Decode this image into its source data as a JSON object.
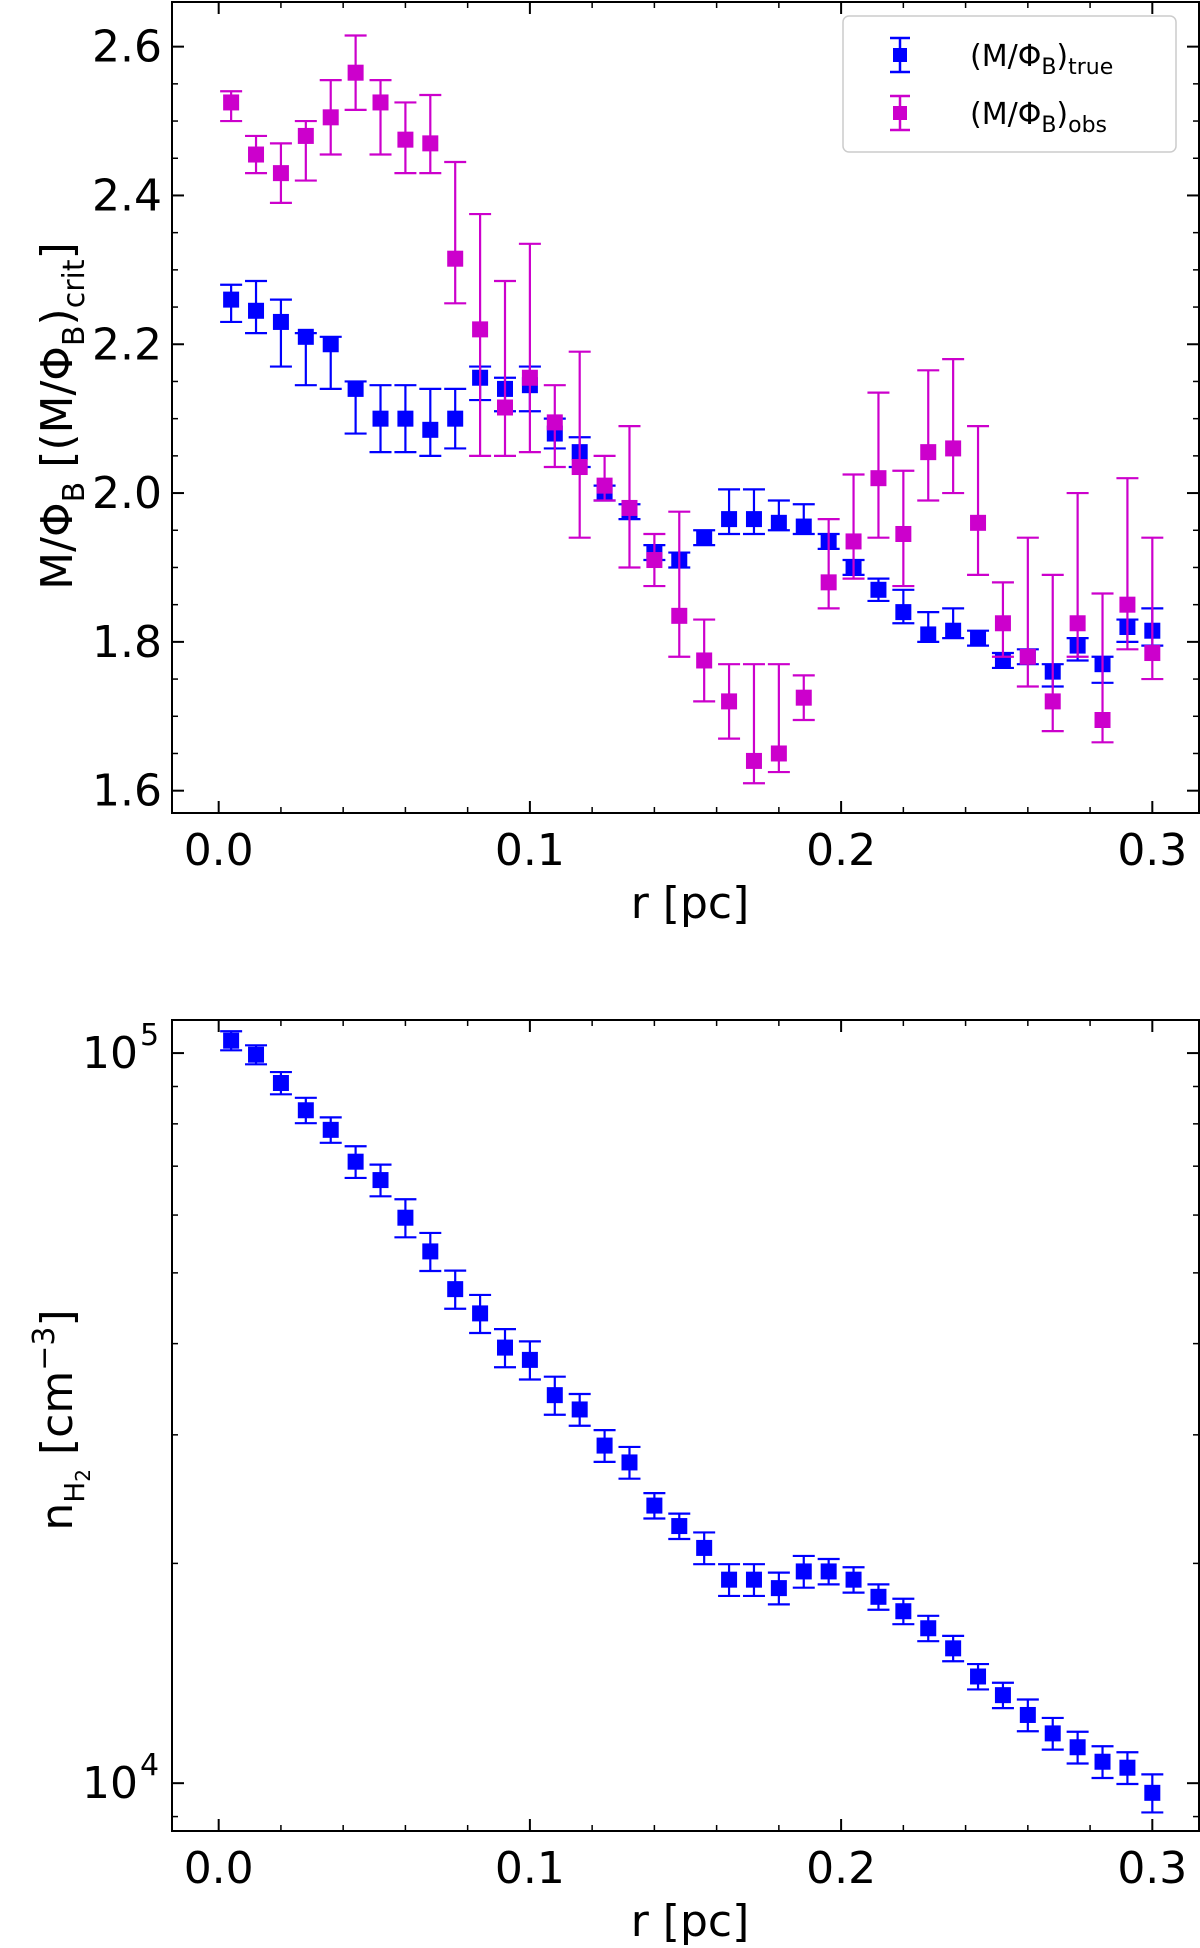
{
  "chart_data": [
    {
      "type": "scatter",
      "panel": "top",
      "title": "",
      "xlabel": "r [pc]",
      "ylabel": "M/Φ_B [(M/Φ_B)_crit]",
      "ylabel_parts": {
        "main": "M/Φ",
        "sub1": "B",
        "mid": " [(M/Φ",
        "sub2": "B",
        "mid2": ")",
        "sub3": "crit",
        "end": "]"
      },
      "xlim": [
        -0.015,
        0.315
      ],
      "ylim": [
        1.57,
        2.66
      ],
      "xticks": [
        0.0,
        0.1,
        0.2,
        0.3
      ],
      "xtick_labels": [
        "0.0",
        "0.1",
        "0.2",
        "0.3"
      ],
      "yticks": [
        1.6,
        1.8,
        2.0,
        2.2,
        2.4,
        2.6
      ],
      "ytick_labels": [
        "1.6",
        "1.8",
        "2.0",
        "2.2",
        "2.4",
        "2.6"
      ],
      "legend": {
        "position": "top-right",
        "entries": [
          {
            "main": "(M/Φ",
            "sub1": "B",
            "close": ")",
            "sub2": "true"
          },
          {
            "main": "(M/Φ",
            "sub1": "B",
            "close": ")",
            "sub2": "obs"
          }
        ]
      },
      "x": [
        0.004,
        0.012,
        0.02,
        0.028,
        0.036,
        0.044,
        0.052,
        0.06,
        0.068,
        0.076,
        0.084,
        0.092,
        0.1,
        0.108,
        0.116,
        0.124,
        0.132,
        0.14,
        0.148,
        0.156,
        0.164,
        0.172,
        0.18,
        0.188,
        0.196,
        0.204,
        0.212,
        0.22,
        0.228,
        0.236,
        0.244,
        0.252,
        0.26,
        0.268,
        0.276,
        0.284,
        0.292,
        0.3
      ],
      "series": [
        {
          "name": "(M/Φ_B)_true",
          "color": "#0000ff",
          "values": [
            2.26,
            2.245,
            2.23,
            2.21,
            2.2,
            2.14,
            2.1,
            2.1,
            2.085,
            2.1,
            2.155,
            2.14,
            2.145,
            2.08,
            2.055,
            2.0,
            1.975,
            1.92,
            1.91,
            1.94,
            1.965,
            1.965,
            1.96,
            1.955,
            1.935,
            1.9,
            1.87,
            1.84,
            1.81,
            1.815,
            1.805,
            1.775,
            1.78,
            1.76,
            1.795,
            1.77,
            1.82,
            1.815
          ],
          "err_low": [
            0.03,
            0.03,
            0.06,
            0.065,
            0.06,
            0.06,
            0.045,
            0.045,
            0.035,
            0.04,
            0.03,
            0.03,
            0.035,
            0.02,
            0.02,
            0.01,
            0.01,
            0.01,
            0.01,
            0.01,
            0.02,
            0.02,
            0.01,
            0.01,
            0.01,
            0.01,
            0.015,
            0.015,
            0.01,
            0.01,
            0.01,
            0.01,
            0.01,
            0.02,
            0.02,
            0.025,
            0.02,
            0.02
          ],
          "err_high": [
            0.02,
            0.04,
            0.03,
            0.005,
            0.01,
            0.01,
            0.045,
            0.045,
            0.055,
            0.04,
            0.015,
            0.015,
            0.025,
            0.02,
            0.02,
            0.01,
            0.01,
            0.01,
            0.01,
            0.01,
            0.04,
            0.04,
            0.03,
            0.03,
            0.01,
            0.01,
            0.015,
            0.03,
            0.03,
            0.03,
            0.01,
            0.01,
            0.01,
            0.01,
            0.01,
            0.01,
            0.01,
            0.03
          ]
        },
        {
          "name": "(M/Φ_B)_obs",
          "color": "#cc00cc",
          "values": [
            2.525,
            2.455,
            2.43,
            2.48,
            2.505,
            2.565,
            2.525,
            2.475,
            2.47,
            2.315,
            2.22,
            2.115,
            2.155,
            2.095,
            2.035,
            2.01,
            1.98,
            1.91,
            1.835,
            1.775,
            1.72,
            1.64,
            1.65,
            1.725,
            1.88,
            1.935,
            2.02,
            1.945,
            2.055,
            2.06,
            1.96,
            1.825,
            1.78,
            1.72,
            1.825,
            1.695,
            1.85,
            1.785
          ],
          "err_low": [
            0.025,
            0.025,
            0.04,
            0.06,
            0.05,
            0.05,
            0.07,
            0.045,
            0.04,
            0.06,
            0.17,
            0.065,
            0.1,
            0.06,
            0.095,
            0.02,
            0.08,
            0.035,
            0.055,
            0.055,
            0.05,
            0.03,
            0.025,
            0.03,
            0.035,
            0.05,
            0.08,
            0.07,
            0.065,
            0.06,
            0.07,
            0.045,
            0.04,
            0.04,
            0.045,
            0.03,
            0.06,
            0.035
          ],
          "err_high": [
            0.015,
            0.025,
            0.04,
            0.02,
            0.05,
            0.05,
            0.03,
            0.05,
            0.065,
            0.13,
            0.155,
            0.17,
            0.18,
            0.05,
            0.155,
            0.04,
            0.11,
            0.035,
            0.14,
            0.055,
            0.05,
            0.13,
            0.12,
            0.03,
            0.085,
            0.09,
            0.115,
            0.085,
            0.11,
            0.12,
            0.13,
            0.055,
            0.16,
            0.17,
            0.175,
            0.17,
            0.17,
            0.155
          ]
        }
      ]
    },
    {
      "type": "scatter",
      "panel": "bottom",
      "title": "",
      "xlabel": "r [pc]",
      "ylabel": "n_H2 [cm^-3]",
      "ylabel_parts": {
        "n": "n",
        "h": "H",
        "h2": "2",
        "unit": " [cm",
        "exp": "−3",
        "close": "]"
      },
      "yscale": "log",
      "xlim": [
        -0.015,
        0.315
      ],
      "ylim": [
        8600,
        111000
      ],
      "xticks": [
        0.0,
        0.1,
        0.2,
        0.3
      ],
      "xtick_labels": [
        "0.0",
        "0.1",
        "0.2",
        "0.3"
      ],
      "yticks_major": [
        10000,
        100000
      ],
      "ytick_bases": [
        "10",
        "10"
      ],
      "ytick_exponents": [
        "4",
        "5"
      ],
      "yticks_minor": [
        9000,
        20000,
        30000,
        40000,
        50000,
        60000,
        70000,
        80000,
        90000
      ],
      "x": [
        0.004,
        0.012,
        0.02,
        0.028,
        0.036,
        0.044,
        0.052,
        0.06,
        0.068,
        0.076,
        0.084,
        0.092,
        0.1,
        0.108,
        0.116,
        0.124,
        0.132,
        0.14,
        0.148,
        0.156,
        0.164,
        0.172,
        0.18,
        0.188,
        0.196,
        0.204,
        0.212,
        0.22,
        0.228,
        0.236,
        0.244,
        0.252,
        0.26,
        0.268,
        0.276,
        0.284,
        0.292,
        0.3
      ],
      "series": [
        {
          "name": "n_H2",
          "color": "#0000ff",
          "values": [
            104000,
            99500,
            91000,
            83500,
            78500,
            71000,
            67000,
            59500,
            53500,
            47500,
            44000,
            39500,
            38000,
            34000,
            32500,
            29000,
            27500,
            24000,
            22500,
            21000,
            19000,
            19000,
            18500,
            19500,
            19500,
            19000,
            18000,
            17200,
            16300,
            15300,
            14000,
            13200,
            12400,
            11700,
            11200,
            10700,
            10500,
            9700
          ],
          "err_rel": [
            0.03,
            0.03,
            0.035,
            0.04,
            0.04,
            0.05,
            0.05,
            0.06,
            0.06,
            0.06,
            0.06,
            0.06,
            0.06,
            0.06,
            0.05,
            0.05,
            0.05,
            0.04,
            0.04,
            0.05,
            0.05,
            0.05,
            0.05,
            0.05,
            0.04,
            0.04,
            0.04,
            0.04,
            0.04,
            0.04,
            0.04,
            0.04,
            0.05,
            0.05,
            0.05,
            0.05,
            0.05,
            0.06
          ]
        }
      ]
    }
  ]
}
